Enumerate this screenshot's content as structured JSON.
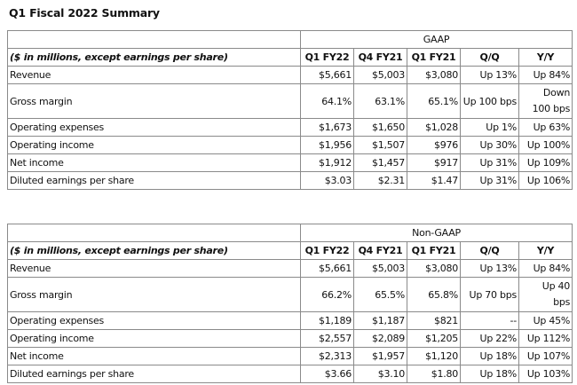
{
  "title": "Q1 Fiscal 2022 Summary",
  "gaap": {
    "title": "GAAP",
    "headers": [
      "($ in millions, except earnings per share)",
      "Q1 FY22",
      "Q4 FY21",
      "Q1 FY21",
      "Q/Q",
      "Y/Y"
    ],
    "rows": [
      {
        "label": "Revenue",
        "q1fy22": "$5,661",
        "q4fy21": "$5,003",
        "q1fy21": "$3,080",
        "qq": "Up 13%",
        "yy": "Up 84%"
      },
      {
        "label": "Gross margin",
        "q1fy22": "64.1%",
        "q4fy21": "63.1%",
        "q1fy21": "65.1%",
        "qq": "Up 100 bps",
        "yy": "Down",
        "yy2": "100 bps"
      },
      {
        "label": "Operating expenses",
        "q1fy22": "$1,673",
        "q4fy21": "$1,650",
        "q1fy21": "$1,028",
        "qq": "Up 1%",
        "yy": "Up 63%"
      },
      {
        "label": "Operating income",
        "q1fy22": "$1,956",
        "q4fy21": "$1,507",
        "q1fy21": "$976",
        "qq": "Up 30%",
        "yy": "Up 100%"
      },
      {
        "label": "Net income",
        "q1fy22": "$1,912",
        "q4fy21": "$1,457",
        "q1fy21": "$917",
        "qq": "Up 31%",
        "yy": "Up 109%"
      },
      {
        "label": "Diluted earnings per share",
        "q1fy22": "$3.03",
        "q4fy21": "$2.31",
        "q1fy21": "$1.47",
        "qq": "Up 31%",
        "yy": "Up 106%"
      }
    ]
  },
  "nongaap": {
    "title": "Non-GAAP",
    "headers": [
      "($ in millions, except earnings per share)",
      "Q1 FY22",
      "Q4 FY21",
      "Q1 FY21",
      "Q/Q",
      "Y/Y"
    ],
    "rows": [
      {
        "label": "Revenue",
        "q1fy22": "$5,661",
        "q4fy21": "$5,003",
        "q1fy21": "$3,080",
        "qq": "Up 13%",
        "yy": "Up 84%"
      },
      {
        "label": "Gross margin",
        "q1fy22": "66.2%",
        "q4fy21": "65.5%",
        "q1fy21": "65.8%",
        "qq": "Up 70 bps",
        "yy": "Up 40",
        "yy2": "bps"
      },
      {
        "label": "Operating expenses",
        "q1fy22": "$1,189",
        "q4fy21": "$1,187",
        "q1fy21": "$821",
        "qq": "--",
        "yy": "Up 45%"
      },
      {
        "label": "Operating income",
        "q1fy22": "$2,557",
        "q4fy21": "$2,089",
        "q1fy21": "$1,205",
        "qq": "Up 22%",
        "yy": "Up 112%"
      },
      {
        "label": "Net income",
        "q1fy22": "$2,313",
        "q4fy21": "$1,957",
        "q1fy21": "$1,120",
        "qq": "Up 18%",
        "yy": "Up 107%"
      },
      {
        "label": "Diluted earnings per share",
        "q1fy22": "$3.66",
        "q4fy21": "$3.10",
        "q1fy21": "$1.80",
        "qq": "Up 18%",
        "yy": "Up 103%"
      }
    ]
  }
}
